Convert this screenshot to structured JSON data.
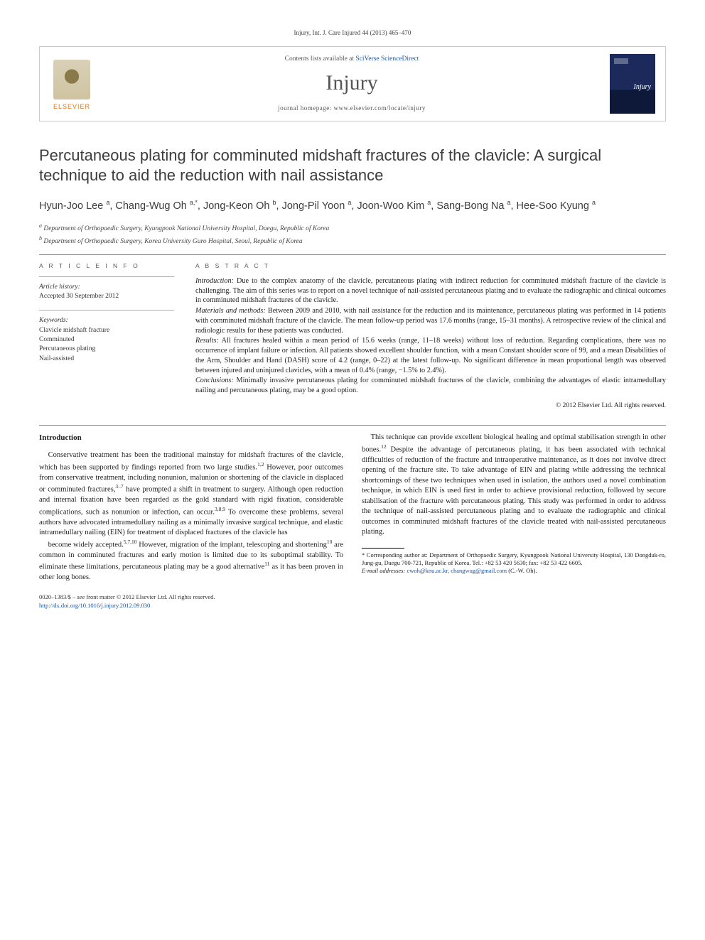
{
  "header": {
    "citation": "Injury, Int. J. Care Injured 44 (2013) 465–470"
  },
  "masthead": {
    "publisher_word": "ELSEVIER",
    "contents_prefix": "Contents lists available at ",
    "contents_link": "SciVerse ScienceDirect",
    "journal_name": "Injury",
    "homepage_prefix": "journal homepage: ",
    "homepage_url": "www.elsevier.com/locate/injury",
    "cover_label": "Injury"
  },
  "article": {
    "title": "Percutaneous plating for comminuted midshaft fractures of the clavicle: A surgical technique to aid the reduction with nail assistance",
    "authors_html": "Hyun-Joo Lee <sup>a</sup>, Chang-Wug Oh <sup>a,*</sup>, Jong-Keon Oh <sup>b</sup>, Jong-Pil Yoon <sup>a</sup>, Joon-Woo Kim <sup>a</sup>, Sang-Bong Na <sup>a</sup>, Hee-Soo Kyung <sup>a</sup>",
    "affiliations": [
      "a Department of Orthopaedic Surgery, Kyungpook National University Hospital, Daegu, Republic of Korea",
      "b Department of Orthopaedic Surgery, Korea University Guro Hospital, Seoul, Republic of Korea"
    ]
  },
  "info": {
    "heading": "A R T I C L E   I N F O",
    "history_label": "Article history:",
    "history_value": "Accepted 30 September 2012",
    "keywords_label": "Keywords:",
    "keywords": [
      "Clavicle midshaft fracture",
      "Comminuted",
      "Percutaneous plating",
      "Nail-assisted"
    ]
  },
  "abstract": {
    "heading": "A B S T R A C T",
    "paras": [
      {
        "run_in": "Introduction:",
        "text": " Due to the complex anatomy of the clavicle, percutaneous plating with indirect reduction for comminuted midshaft fracture of the clavicle is challenging. The aim of this series was to report on a novel technique of nail-assisted percutaneous plating and to evaluate the radiographic and clinical outcomes in comminuted midshaft fractures of the clavicle."
      },
      {
        "run_in": "Materials and methods:",
        "text": " Between 2009 and 2010, with nail assistance for the reduction and its maintenance, percutaneous plating was performed in 14 patients with comminuted midshaft fracture of the clavicle. The mean follow-up period was 17.6 months (range, 15–31 months). A retrospective review of the clinical and radiologic results for these patients was conducted."
      },
      {
        "run_in": "Results:",
        "text": " All fractures healed within a mean period of 15.6 weeks (range, 11–18 weeks) without loss of reduction. Regarding complications, there was no occurrence of implant failure or infection. All patients showed excellent shoulder function, with a mean Constant shoulder score of 99, and a mean Disabilities of the Arm, Shoulder and Hand (DASH) score of 4.2 (range, 0–22) at the latest follow-up. No significant difference in mean proportional length was observed between injured and uninjured clavicles, with a mean of 0.4% (range, −1.5% to 2.4%)."
      },
      {
        "run_in": "Conclusions:",
        "text": " Minimally invasive percutaneous plating for comminuted midshaft fractures of the clavicle, combining the advantages of elastic intramedullary nailing and percutaneous plating, may be a good option."
      }
    ],
    "copyright": "© 2012 Elsevier Ltd. All rights reserved."
  },
  "body": {
    "intro_heading": "Introduction",
    "paragraphs": [
      "Conservative treatment has been the traditional mainstay for midshaft fractures of the clavicle, which has been supported by findings reported from two large studies.<sup>1,2</sup> However, poor outcomes from conservative treatment, including nonunion, malunion or shortening of the clavicle in displaced or comminuted fractures,<sup>3–7</sup> have prompted a shift in treatment to surgery. Although open reduction and internal fixation have been regarded as the gold standard with rigid fixation, considerable complications, such as nonunion or infection, can occur.<sup>3,8,9</sup> To overcome these problems, several authors have advocated intramedullary nailing as a minimally invasive surgical technique, and elastic intramedullary nailing (EIN) for treatment of displaced fractures of the clavicle has",
      "become widely accepted.<sup>5,7,10</sup> However, migration of the implant, telescoping and shortening<sup>10</sup> are common in comminuted fractures and early motion is limited due to its suboptimal stability. To eliminate these limitations, percutaneous plating may be a good alternative<sup>11</sup> as it has been proven in other long bones.",
      "This technique can provide excellent biological healing and optimal stabilisation strength in other bones.<sup>12</sup> Despite the advantage of percutaneous plating, it has been associated with technical difficulties of reduction of the fracture and intraoperative maintenance, as it does not involve direct opening of the fracture site. To take advantage of EIN and plating while addressing the technical shortcomings of these two techniques when used in isolation, the authors used a novel combination technique, in which EIN is used first in order to achieve provisional reduction, followed by secure stabilisation of the fracture with percutaneous plating. This study was performed in order to address the technique of nail-assisted percutaneous plating and to evaluate the radiographic and clinical outcomes in comminuted midshaft fractures of the clavicle treated with nail-assisted percutaneous plating."
    ]
  },
  "footnotes": {
    "corresponding": "* Corresponding author at: Department of Orthopaedic Surgery, Kyungpook National University Hospital, 130 Dongduk-ro, Jung-gu, Daegu 700-721, Republic of Korea. Tel.: +82 53 420 5630; fax: +82 53 422 6605.",
    "email_label": "E-mail addresses: ",
    "emails": "cwoh@knu.ac.kr, changwug@gmail.com",
    "email_suffix": " (C.-W. Oh)."
  },
  "footer": {
    "line1": "0020–1383/$ – see front matter © 2012 Elsevier Ltd. All rights reserved.",
    "doi": "http://dx.doi.org/10.1016/j.injury.2012.09.030"
  },
  "colors": {
    "link": "#1a54a6",
    "publisher": "#e67817",
    "text": "#222222",
    "rule": "#888888"
  }
}
